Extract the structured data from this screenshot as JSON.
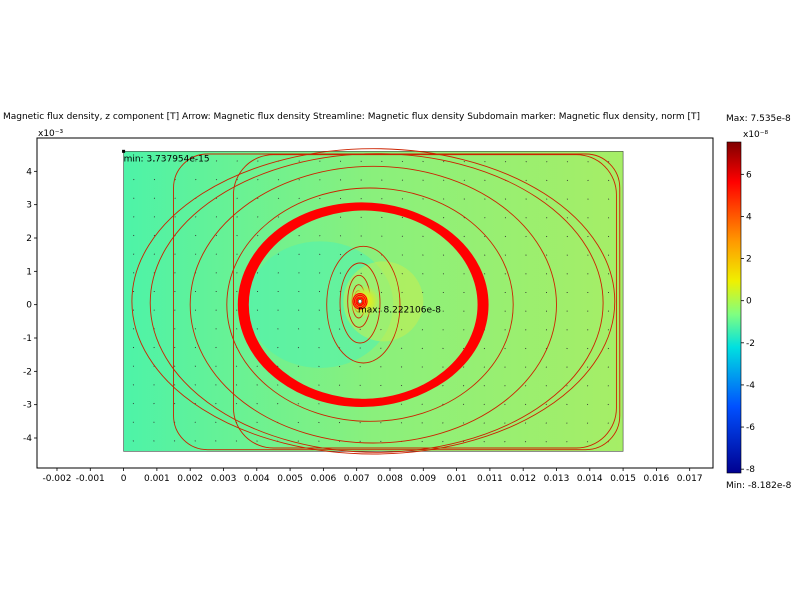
{
  "title": "Surface: Magnetic flux density, z component [T]   Arrow: Magnetic flux density   Streamline: Magnetic flux density   Subdomain marker: Magnetic flux density, norm [T]",
  "chart_data": {
    "type": "heatmap",
    "title": "Surface: Magnetic flux density, z component [T]   Arrow: Magnetic flux density   Streamline: Magnetic flux density   Subdomain marker: Magnetic flux density, norm [T]",
    "x_ticks": [
      "-0.002",
      "-0.001",
      "0",
      "0.001",
      "0.002",
      "0.003",
      "0.004",
      "0.005",
      "0.006",
      "0.007",
      "0.008",
      "0.009",
      "0.01",
      "0.011",
      "0.012",
      "0.013",
      "0.014",
      "0.015",
      "0.016",
      "0.017"
    ],
    "x_tick_values": [
      -0.002,
      -0.001,
      0,
      0.001,
      0.002,
      0.003,
      0.004,
      0.005,
      0.006,
      0.007,
      0.008,
      0.009,
      0.01,
      0.011,
      0.012,
      0.013,
      0.014,
      0.015,
      0.016,
      0.017
    ],
    "y_ticks": [
      "4",
      "3",
      "2",
      "1",
      "0",
      "-1",
      "-2",
      "-3",
      "-4"
    ],
    "y_tick_values": [
      4,
      3,
      2,
      1,
      0,
      -1,
      -2,
      -3,
      -4
    ],
    "y_multiplier": "x10⁻³",
    "xlim": [
      -0.0026,
      0.0177
    ],
    "ylim": [
      -4.9,
      5.0
    ],
    "domain": {
      "x": [
        0,
        0.015
      ],
      "y": [
        -4.4,
        4.6
      ]
    },
    "coil": {
      "cx": 0.0071,
      "cy": 0.1
    },
    "ring": {
      "cx": 0.00715,
      "cy": 0.0,
      "rx": 0.0036,
      "ry": 2.95
    },
    "streamlines": [
      {
        "cx": 0.00705,
        "cy": 0.1,
        "rx": 0.00013,
        "ry": 0.32
      },
      {
        "cx": 0.00706,
        "cy": 0.1,
        "rx": 0.0002,
        "ry": 0.5
      },
      {
        "cx": 0.00707,
        "cy": 0.1,
        "rx": 0.00034,
        "ry": 0.78
      },
      {
        "cx": 0.0071,
        "cy": 0.05,
        "rx": 0.0006,
        "ry": 1.2
      },
      {
        "cx": 0.0072,
        "cy": 0.0,
        "rx": 0.0011,
        "ry": 1.75
      },
      {
        "cx": 0.0074,
        "cy": 0.0,
        "rx": 0.0043,
        "ry": 3.5
      },
      {
        "cx": 0.0075,
        "cy": 0.0,
        "rx": 0.0055,
        "ry": 4.15
      },
      {
        "cx": 0.0076,
        "cy": 0.05,
        "rx": 0.0068,
        "ry": 4.48
      },
      {
        "cx": 0.0075,
        "cy": 0.1,
        "rx": 0.00725,
        "ry": 4.58
      }
    ],
    "annotations": {
      "min": "min: 3.737954e-15",
      "max": "max: 8.222106e-8"
    },
    "colorbar": {
      "max_label": "Max: 7.535e-8",
      "min_label": "Min: -8.182e-8",
      "multiplier": "x10⁻⁸",
      "ticks": [
        "6",
        "4",
        "2",
        "0",
        "-2",
        "-4",
        "-6",
        "-8"
      ],
      "tick_values": [
        6,
        4,
        2,
        0,
        -2,
        -4,
        -6,
        -8
      ],
      "range": [
        -8.182,
        7.535
      ]
    }
  }
}
